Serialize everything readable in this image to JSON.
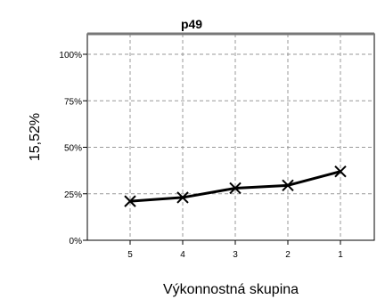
{
  "chart_data": {
    "type": "line",
    "title": "p49",
    "xlabel": "Výkonnostná skupina",
    "ylabel": "15,52%",
    "categories": [
      "5",
      "4",
      "3",
      "2",
      "1"
    ],
    "series": [
      {
        "values": [
          21,
          23,
          28,
          29.5,
          37
        ],
        "color": "#000000",
        "marker": "x"
      }
    ],
    "ylim": [
      0,
      100
    ],
    "yticks": [
      {
        "value": 0,
        "label": "0%"
      },
      {
        "value": 25,
        "label": "25%"
      },
      {
        "value": 50,
        "label": "50%"
      },
      {
        "value": 75,
        "label": "75%"
      },
      {
        "value": 100,
        "label": "100%"
      }
    ],
    "grid": true,
    "grid_style": "dashed",
    "title_bar": true,
    "colors": {
      "line": "#000000",
      "grid": "#999999",
      "frame": "#000000",
      "background": "#ffffff"
    }
  }
}
